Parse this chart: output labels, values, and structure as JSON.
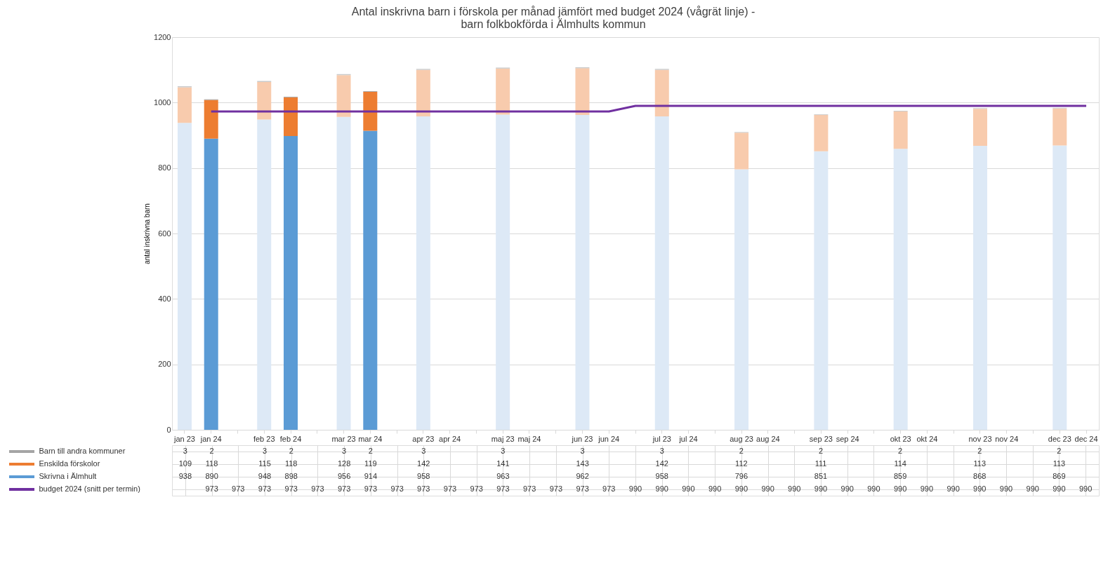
{
  "chart_data": {
    "type": "bar",
    "stacked": true,
    "title": [
      "Antal inskrivna barn i förskola per månad jämfört med budget 2024 (vågrät linje) -",
      "barn folkbokförda i Älmhults kommun"
    ],
    "ylabel": "antal inskrivna barn",
    "ylim": [
      0,
      1200
    ],
    "yticks": [
      0,
      200,
      400,
      600,
      800,
      1000,
      1200
    ],
    "grid": "y",
    "legend": "bottom",
    "data_labels": true,
    "categories": [
      "jan 23",
      "jan 24",
      null,
      "feb 23",
      "feb 24",
      null,
      "mar 23",
      "mar 24",
      null,
      "apr 23",
      "apr 24",
      null,
      "maj 23",
      "maj 24",
      null,
      "jun 23",
      "jun 24",
      null,
      "jul 23",
      "jul 24",
      null,
      "aug 23",
      "aug 24",
      null,
      "sep 23",
      "sep 24",
      null,
      "okt 23",
      "okt 24",
      null,
      "nov 23",
      "nov 24",
      null,
      "dec 23",
      "dec 24"
    ],
    "series": [
      {
        "name": "Skrivna i Älmhult",
        "color": "#5b9bd5",
        "values": [
          938,
          890,
          null,
          948,
          898,
          null,
          956,
          914,
          null,
          958,
          null,
          null,
          963,
          null,
          null,
          962,
          null,
          null,
          958,
          null,
          null,
          796,
          null,
          null,
          851,
          null,
          null,
          859,
          null,
          null,
          868,
          null,
          null,
          869,
          null
        ],
        "colors": [
          "#dde9f6",
          "#5b9bd5",
          null,
          "#dde9f6",
          "#5b9bd5",
          null,
          "#dde9f6",
          "#5b9bd5",
          null,
          "#dde9f6",
          null,
          null,
          "#dde9f6",
          null,
          null,
          "#dde9f6",
          null,
          null,
          "#dde9f6",
          null,
          null,
          "#dde9f6",
          null,
          null,
          "#dde9f6",
          null,
          null,
          "#dde9f6",
          null,
          null,
          "#dde9f6",
          null,
          null,
          "#dde9f6",
          null
        ]
      },
      {
        "name": "Enskilda förskolor",
        "color": "#ed7d31",
        "values": [
          109,
          118,
          null,
          115,
          118,
          null,
          128,
          119,
          null,
          142,
          null,
          null,
          141,
          null,
          null,
          143,
          null,
          null,
          142,
          null,
          null,
          112,
          null,
          null,
          111,
          null,
          null,
          114,
          null,
          null,
          113,
          null,
          null,
          113,
          null
        ],
        "colors": [
          "#f8cbad",
          "#ed7d31",
          null,
          "#f8cbad",
          "#ed7d31",
          null,
          "#f8cbad",
          "#ed7d31",
          null,
          "#f8cbad",
          null,
          null,
          "#f8cbad",
          null,
          null,
          "#f8cbad",
          null,
          null,
          "#f8cbad",
          null,
          null,
          "#f8cbad",
          null,
          null,
          "#f8cbad",
          null,
          null,
          "#f8cbad",
          null,
          null,
          "#f8cbad",
          null,
          null,
          "#f8cbad",
          null
        ]
      },
      {
        "name": "Barn till andra kommuner",
        "color": "#a5a5a5",
        "values": [
          3,
          2,
          null,
          3,
          2,
          null,
          3,
          2,
          null,
          3,
          null,
          null,
          3,
          null,
          null,
          3,
          null,
          null,
          3,
          null,
          null,
          2,
          null,
          null,
          2,
          null,
          null,
          2,
          null,
          null,
          2,
          null,
          null,
          2,
          null
        ],
        "colors": [
          "#c9c9c9",
          "#a5a5a5",
          null,
          "#c9c9c9",
          "#a5a5a5",
          null,
          "#c9c9c9",
          "#a5a5a5",
          null,
          "#c9c9c9",
          null,
          null,
          "#c9c9c9",
          null,
          null,
          "#c9c9c9",
          null,
          null,
          "#c9c9c9",
          null,
          null,
          "#c9c9c9",
          null,
          null,
          "#c9c9c9",
          null,
          null,
          "#c9c9c9",
          null,
          null,
          "#c9c9c9",
          null,
          null,
          "#c9c9c9",
          null
        ]
      },
      {
        "name": "budget 2024 (snitt per termin)",
        "type": "line",
        "color": "#7030a0",
        "values": [
          null,
          973,
          973,
          973,
          973,
          973,
          973,
          973,
          973,
          973,
          973,
          973,
          973,
          973,
          973,
          973,
          973,
          990,
          990,
          990,
          990,
          990,
          990,
          990,
          990,
          990,
          990,
          990,
          990,
          990,
          990,
          990,
          990,
          990,
          990
        ]
      }
    ]
  }
}
